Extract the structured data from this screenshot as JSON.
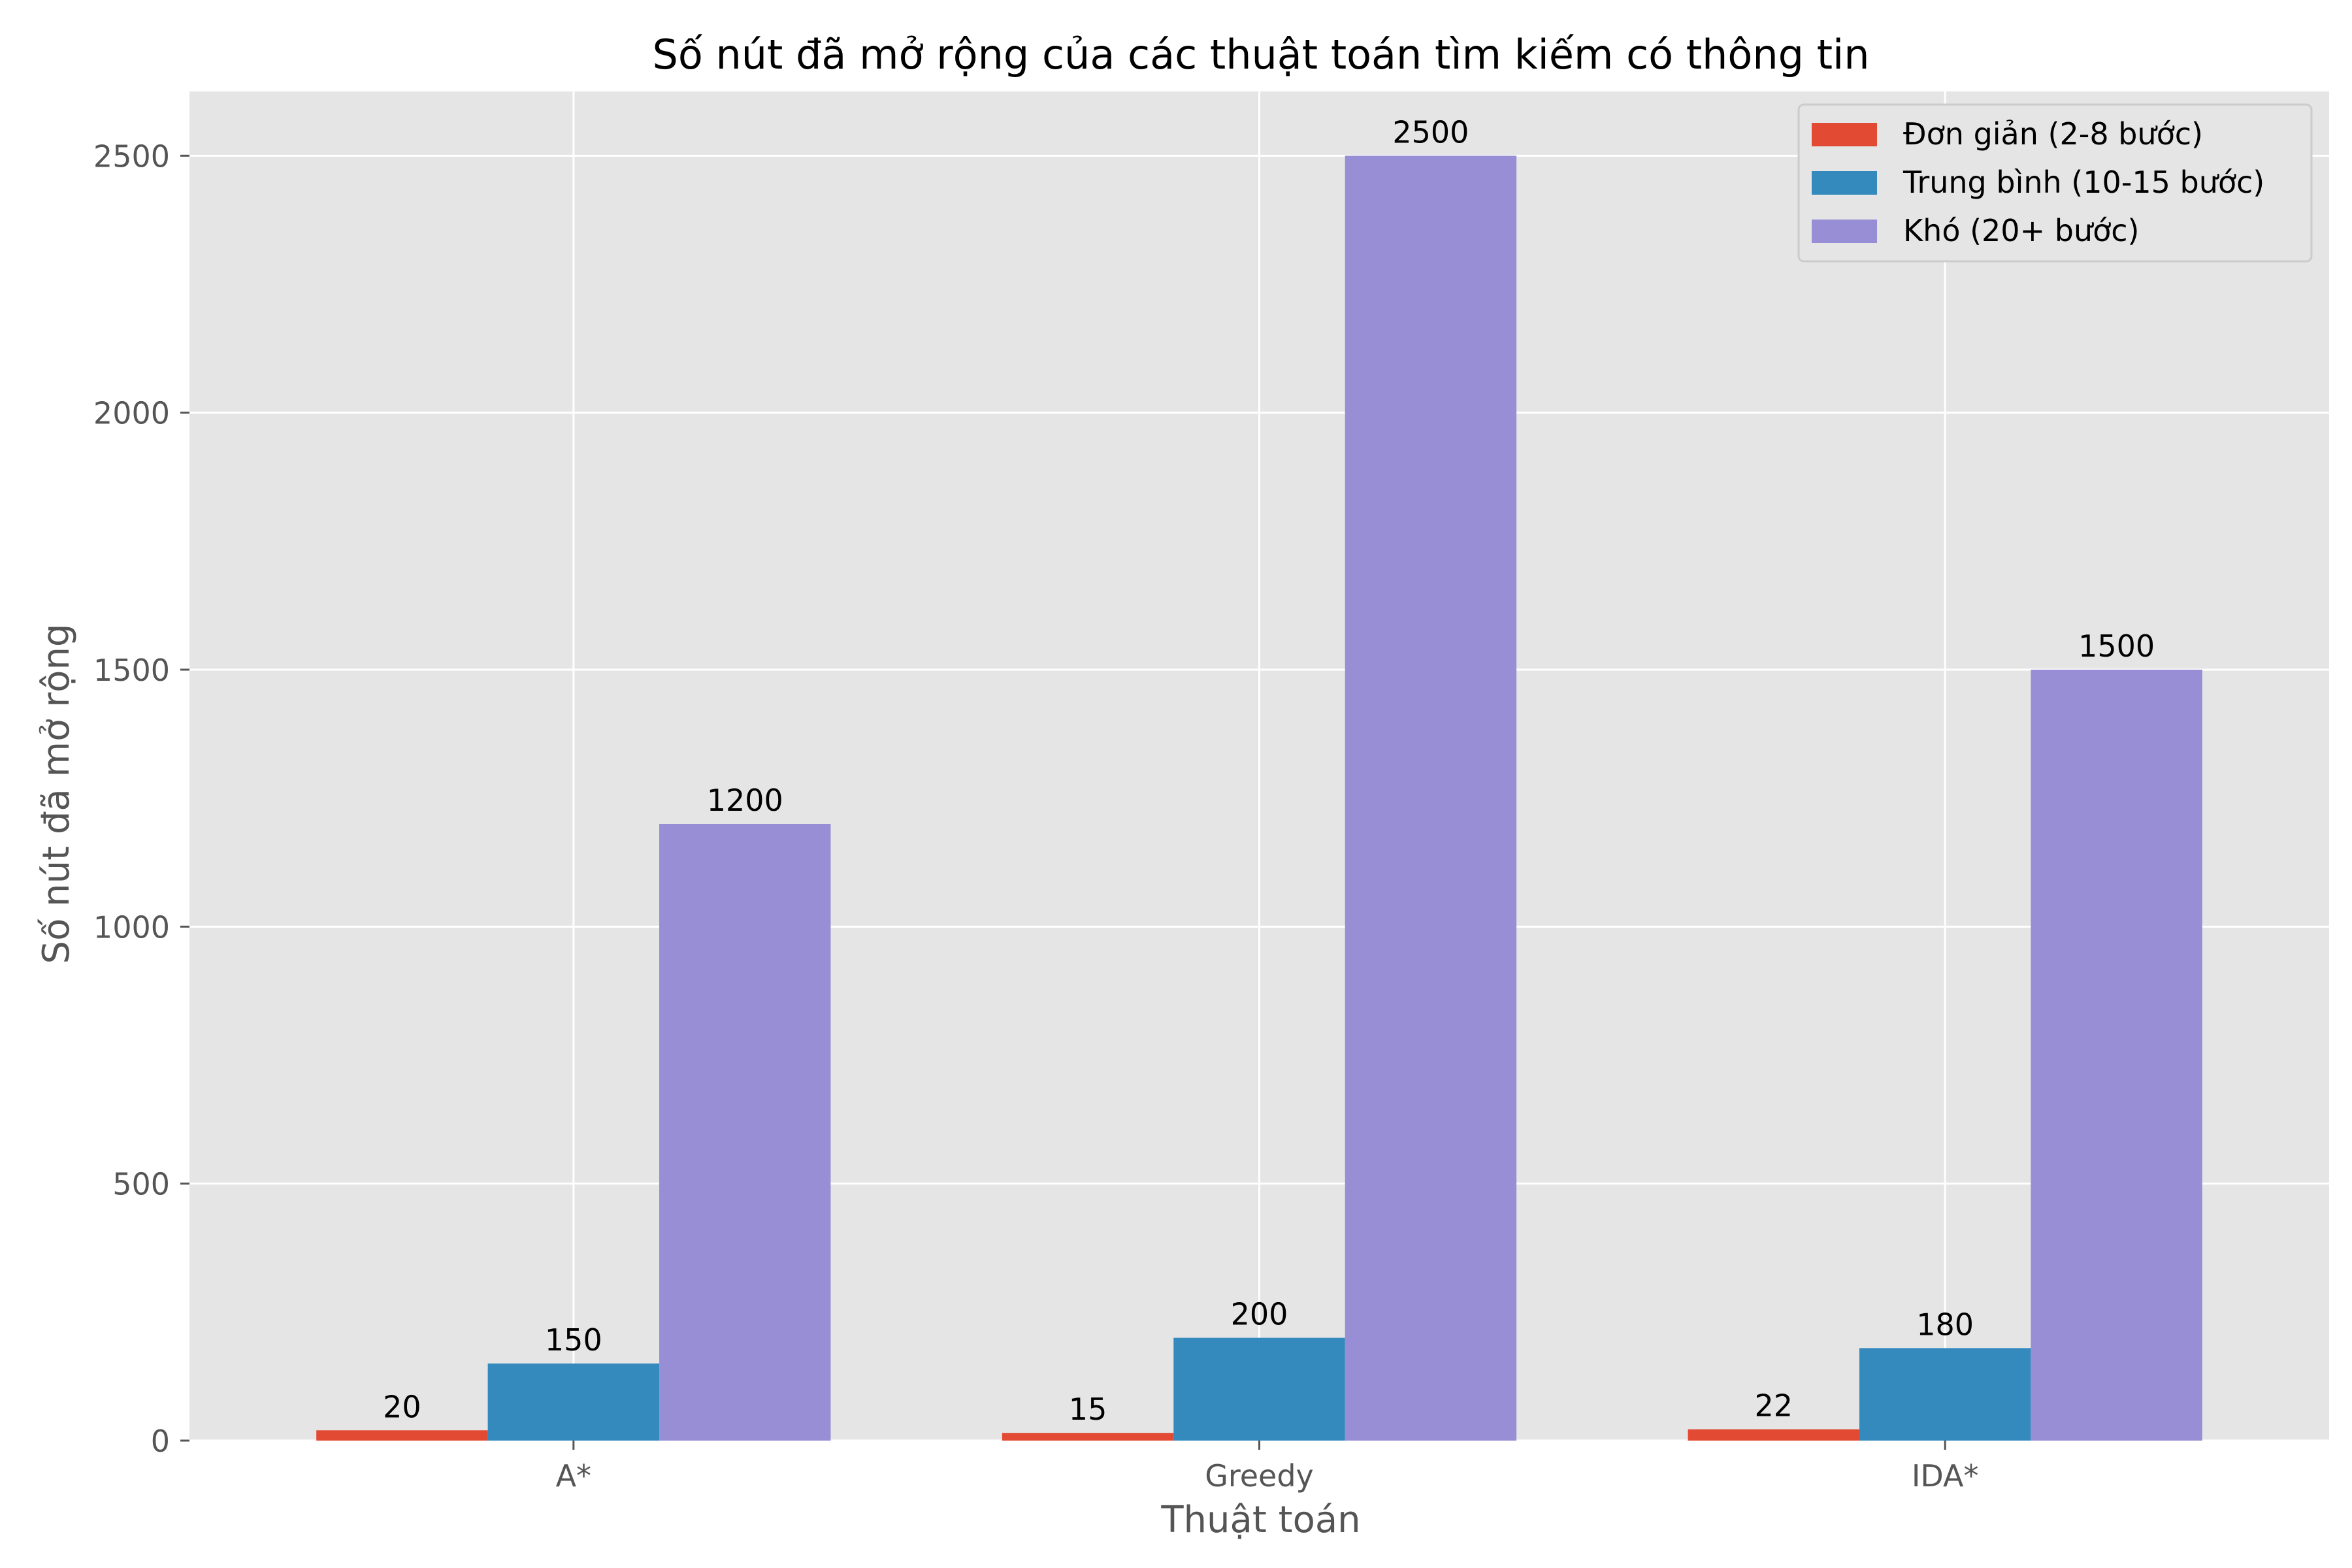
{
  "chart_data": {
    "type": "bar",
    "title": "Số nút đã mở rộng của các thuật toán tìm kiếm có thông tin",
    "xlabel": "Thuật toán",
    "ylabel": "Số nút đã mở rộng",
    "categories": [
      "A*",
      "Greedy",
      "IDA*"
    ],
    "series": [
      {
        "name": "Đơn giản (2-8 bước)",
        "color": "#e24a33",
        "values": [
          20,
          15,
          22
        ]
      },
      {
        "name": "Trung bình (10-15 bước)",
        "color": "#348abd",
        "values": [
          150,
          200,
          180
        ]
      },
      {
        "name": "Khó (20+ bước)",
        "color": "#988ed5",
        "values": [
          1200,
          2500,
          1500
        ]
      }
    ],
    "yticks": [
      0,
      500,
      1000,
      1500,
      2000,
      2500
    ],
    "ylim": [
      0,
      2625
    ],
    "grid": true,
    "legend_position": "top-right",
    "background_color": "#e5e5e5"
  }
}
